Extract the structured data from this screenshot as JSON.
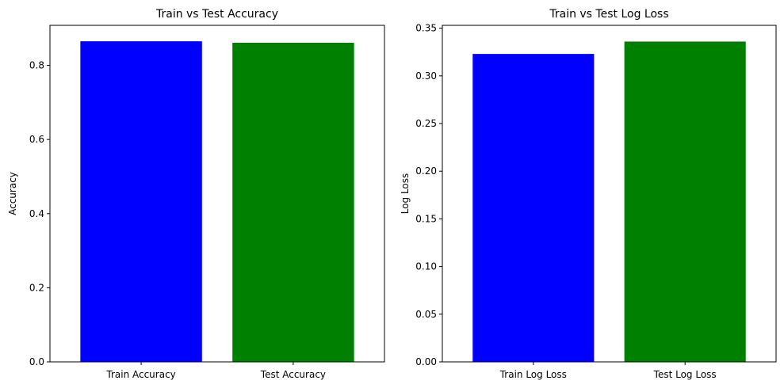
{
  "chart_data": [
    {
      "type": "bar",
      "title": "Train vs Test Accuracy",
      "xlabel": "",
      "ylabel": "Accuracy",
      "categories": [
        "Train Accuracy",
        "Test Accuracy"
      ],
      "values": [
        0.865,
        0.861
      ],
      "colors": [
        "#0000ff",
        "#008000"
      ],
      "ylim": [
        0,
        0.908
      ],
      "yticks": [
        0.0,
        0.2,
        0.4,
        0.6,
        0.8
      ],
      "ytick_labels": [
        "0.0",
        "0.2",
        "0.4",
        "0.6",
        "0.8"
      ],
      "grid": false
    },
    {
      "type": "bar",
      "title": "Train vs Test Log Loss",
      "xlabel": "",
      "ylabel": "Log Loss",
      "categories": [
        "Train Log Loss",
        "Test Log Loss"
      ],
      "values": [
        0.323,
        0.336
      ],
      "colors": [
        "#0000ff",
        "#008000"
      ],
      "ylim": [
        0,
        0.353
      ],
      "yticks": [
        0.0,
        0.05,
        0.1,
        0.15,
        0.2,
        0.25,
        0.3,
        0.35
      ],
      "ytick_labels": [
        "0.00",
        "0.05",
        "0.10",
        "0.15",
        "0.20",
        "0.25",
        "0.30",
        "0.35"
      ],
      "grid": false
    }
  ]
}
